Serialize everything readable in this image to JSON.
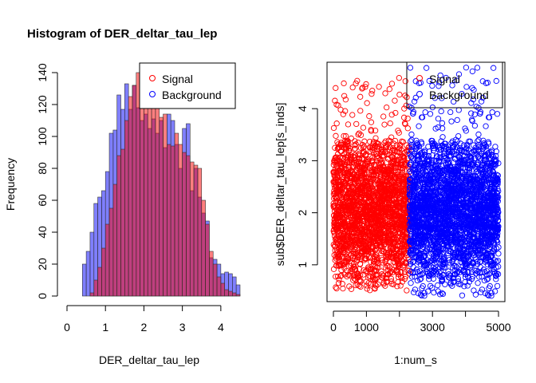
{
  "chart_data": [
    {
      "type": "bar",
      "title": "Histogram of DER_deltar_tau_lep",
      "xlabel": "DER_deltar_tau_lep",
      "ylabel": "Frequency",
      "xlim": [
        0,
        4.2
      ],
      "ylim": [
        0,
        140
      ],
      "x_ticks": [
        "0",
        "1",
        "2",
        "3",
        "4"
      ],
      "x_tick_values": [
        0,
        1,
        2,
        3,
        4
      ],
      "y_ticks": [
        "0",
        "20",
        "40",
        "60",
        "80",
        "100",
        "120",
        "140"
      ],
      "y_tick_values": [
        0,
        20,
        40,
        60,
        80,
        100,
        120,
        140
      ],
      "bin_start": 0.4,
      "bin_width": 0.1,
      "legend": {
        "position": "top-right",
        "entries": [
          "Signal",
          "Background"
        ]
      },
      "series": [
        {
          "name": "Signal",
          "color": "#FF000080",
          "values": [
            0,
            0,
            2,
            10,
            18,
            30,
            45,
            55,
            70,
            88,
            92,
            110,
            125,
            132,
            140,
            138,
            125,
            130,
            118,
            122,
            112,
            114,
            95,
            94,
            102,
            95,
            90,
            88,
            84,
            82,
            80,
            60,
            45,
            28,
            20,
            12,
            8,
            4,
            3,
            2,
            1
          ]
        },
        {
          "name": "Background",
          "color": "#0000FF80",
          "values": [
            20,
            28,
            40,
            58,
            62,
            66,
            78,
            102,
            104,
            126,
            117,
            133,
            117,
            132,
            118,
            110,
            114,
            105,
            111,
            102,
            110,
            93,
            114,
            110,
            95,
            80,
            105,
            108,
            66,
            80,
            62,
            52,
            47,
            24,
            23,
            20,
            14,
            15,
            14,
            12,
            7
          ]
        }
      ]
    },
    {
      "type": "scatter",
      "xlabel": "1:num_s",
      "ylabel": "sub$DER_deltar_tau_lep[s_inds]",
      "xlim": [
        0,
        5000
      ],
      "ylim": [
        0.4,
        4.8
      ],
      "x_ticks": [
        "0",
        "1000",
        "3000",
        "5000"
      ],
      "x_tick_values": [
        0,
        1000,
        3000,
        5000
      ],
      "y_ticks": [
        "1",
        "2",
        "3",
        "4"
      ],
      "y_tick_values": [
        1,
        2,
        3,
        4
      ],
      "legend": {
        "position": "top-right",
        "entries": [
          "Signal",
          "Background"
        ]
      },
      "series": [
        {
          "name": "Signal",
          "color": "#FF0000",
          "x_range": [
            1,
            2300
          ],
          "y_range": [
            0.5,
            4.6
          ],
          "count": 2300,
          "marker": "open-circle"
        },
        {
          "name": "Background",
          "color": "#0000FF",
          "x_range": [
            2301,
            5000
          ],
          "y_range": [
            0.4,
            4.8
          ],
          "count": 2700,
          "marker": "open-circle"
        }
      ]
    }
  ]
}
